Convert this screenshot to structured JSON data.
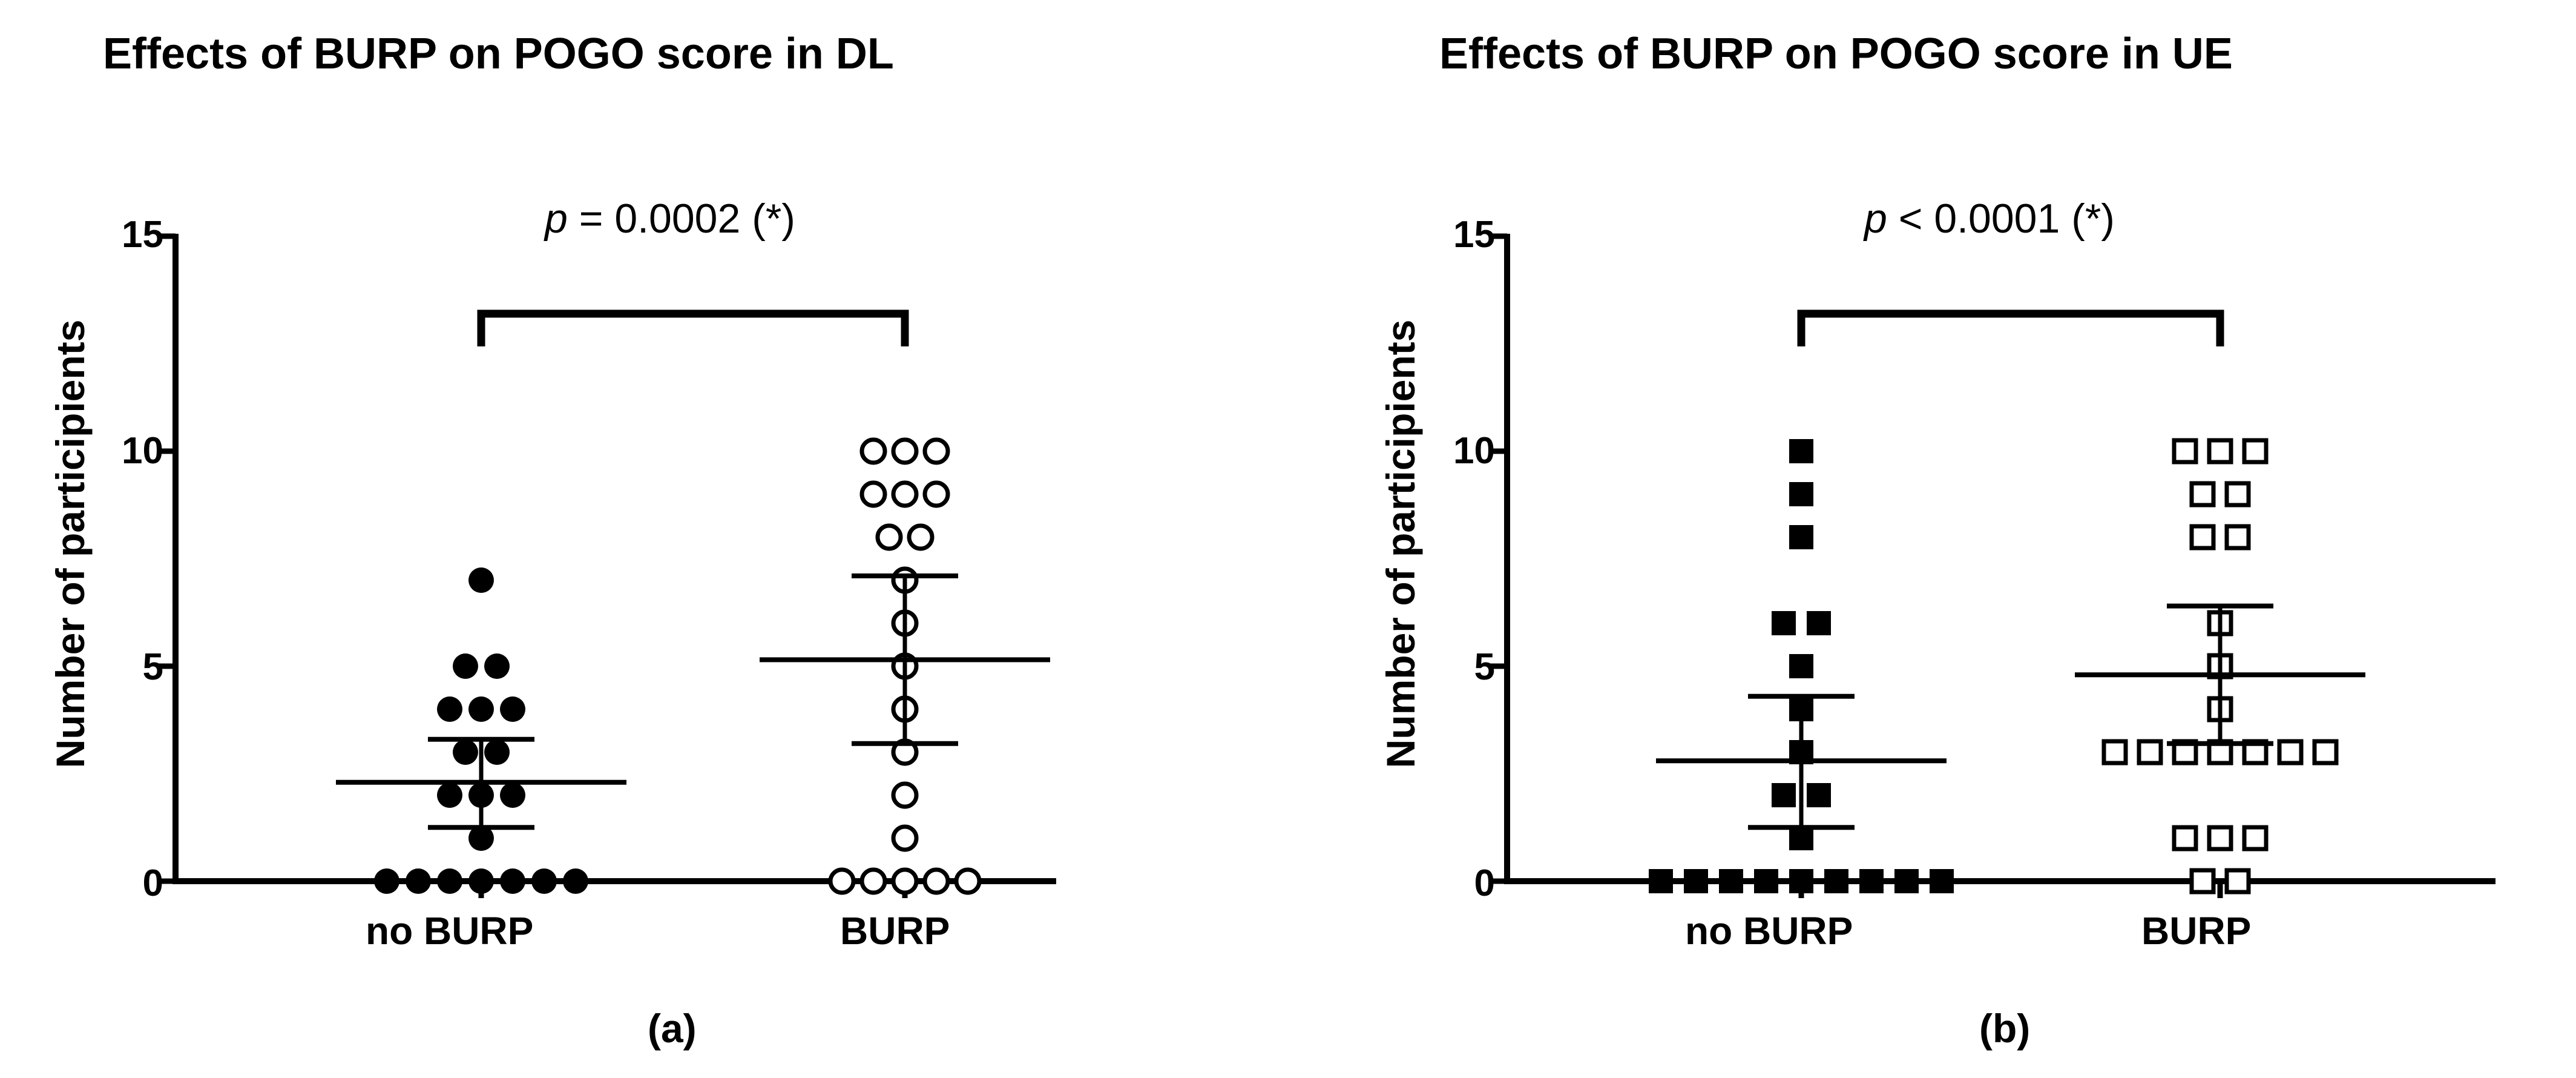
{
  "chart_data": [
    {
      "type": "scatter",
      "panel_label": "(a)",
      "title": "Effects of BURP on POGO score in DL",
      "ylabel": "Number of participients",
      "ylim": [
        0,
        15
      ],
      "yticks": [
        "0",
        "5",
        "10",
        "15"
      ],
      "categories": [
        "no BURP",
        "BURP"
      ],
      "significance": {
        "p_symbol": "p",
        "p_rest": " = 0.0002 (*)"
      },
      "series": [
        {
          "name": "no BURP",
          "marker": "circle-filled",
          "values": [
            7,
            5,
            5,
            4,
            4,
            4,
            3,
            3,
            2,
            2,
            2,
            1,
            0,
            0,
            0,
            0,
            0,
            0,
            0
          ],
          "mean": 2.3,
          "ci_low": 1.25,
          "ci_high": 3.3
        },
        {
          "name": "BURP",
          "marker": "circle-open",
          "values": [
            10,
            10,
            10,
            9,
            9,
            9,
            8,
            8,
            7,
            6,
            5,
            4,
            3,
            2,
            1,
            0,
            0,
            0,
            0,
            0
          ],
          "mean": 5.15,
          "ci_low": 3.2,
          "ci_high": 7.1
        }
      ]
    },
    {
      "type": "scatter",
      "panel_label": "(b)",
      "title": "Effects of BURP on POGO score in UE",
      "ylabel": "Number of participients",
      "ylim": [
        0,
        15
      ],
      "yticks": [
        "0",
        "5",
        "10",
        "15"
      ],
      "categories": [
        "no BURP",
        "BURP"
      ],
      "significance": {
        "p_symbol": "p",
        "p_rest": " < 0.0001 (*)"
      },
      "series": [
        {
          "name": "no BURP",
          "marker": "square-filled",
          "values": [
            10,
            9,
            8,
            6,
            6,
            5,
            4,
            3,
            2,
            2,
            1,
            0,
            0,
            0,
            0,
            0,
            0,
            0,
            0,
            0
          ],
          "mean": 2.8,
          "ci_low": 1.25,
          "ci_high": 4.3
        },
        {
          "name": "BURP",
          "marker": "square-open",
          "values": [
            10,
            10,
            10,
            9,
            9,
            8,
            8,
            6,
            5,
            4,
            3,
            3,
            3,
            3,
            3,
            3,
            3,
            1,
            1,
            1,
            0,
            0
          ],
          "mean": 4.8,
          "ci_low": 3.2,
          "ci_high": 6.4
        }
      ]
    }
  ]
}
